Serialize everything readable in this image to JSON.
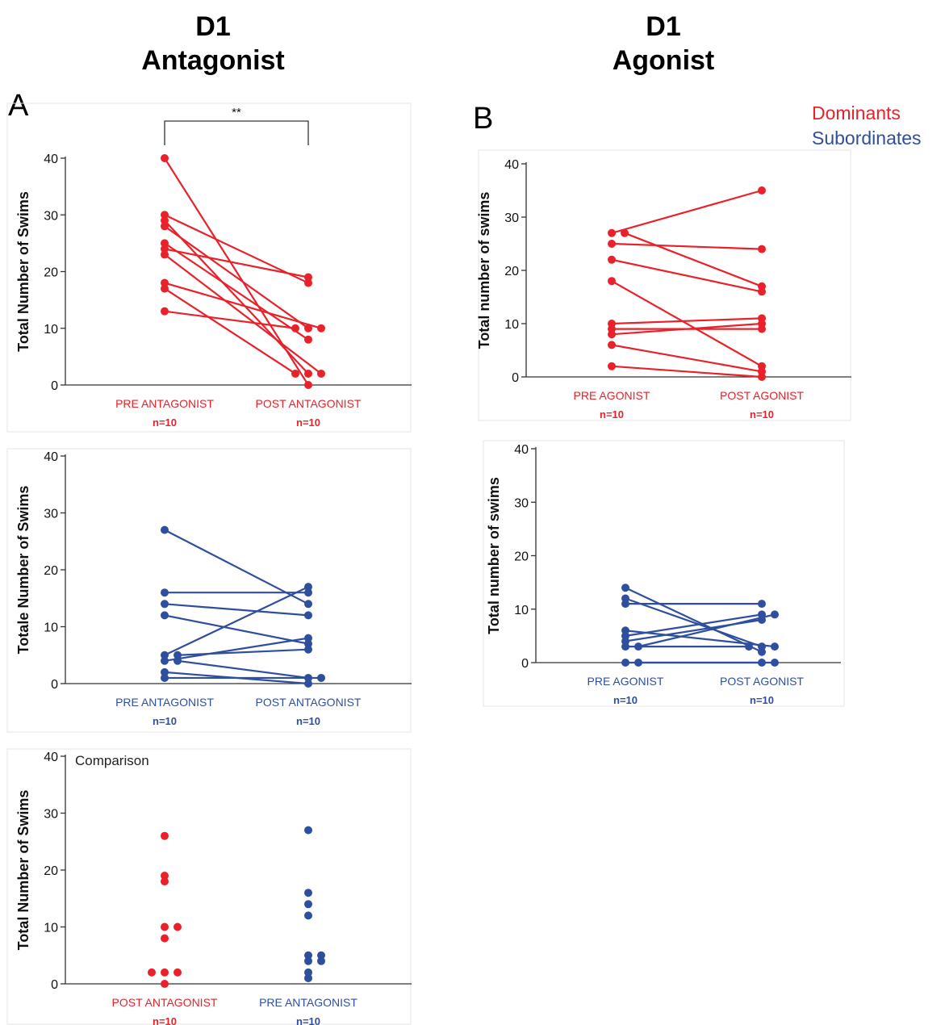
{
  "header": {
    "left_title_line1": "D1",
    "left_title_line2": "Antagonist",
    "right_title_line1": "D1",
    "right_title_line2": "Agonist"
  },
  "panel_labels": {
    "a": "A",
    "b": "B"
  },
  "legend": {
    "dominants": "Dominants",
    "subordinates": "Subordinates",
    "dominants_color": "#e8212a",
    "subordinates_color": "#2f4f9e"
  },
  "chart_data": [
    {
      "id": "antagonist-dominants",
      "type": "scatter",
      "paired": true,
      "color": "#e8212a",
      "ylabel": "Total Number of Swims",
      "ylim": [
        0,
        40
      ],
      "yticks": [
        "0",
        "10",
        "20",
        "30",
        "40"
      ],
      "categories": [
        "PRE ANTAGONIST",
        "POST ANTAGONIST"
      ],
      "n_labels": [
        "n=10",
        "n=10"
      ],
      "annotation": "**",
      "pairs": [
        [
          40,
          0
        ],
        [
          30,
          18
        ],
        [
          29,
          2
        ],
        [
          28,
          10
        ],
        [
          25,
          8
        ],
        [
          24,
          19
        ],
        [
          23,
          2
        ],
        [
          18,
          10
        ],
        [
          17,
          2
        ],
        [
          13,
          10
        ]
      ]
    },
    {
      "id": "antagonist-subordinates",
      "type": "scatter",
      "paired": true,
      "color": "#2f4f9e",
      "ylabel": "Totale Number of Swims",
      "ylim": [
        0,
        40
      ],
      "yticks": [
        "0",
        "10",
        "20",
        "30",
        "40"
      ],
      "categories": [
        "PRE ANTAGONIST",
        "POST ANTAGONIST"
      ],
      "n_labels": [
        "n=10",
        "n=10"
      ],
      "pairs": [
        [
          27,
          14
        ],
        [
          16,
          16
        ],
        [
          14,
          12
        ],
        [
          12,
          7
        ],
        [
          5,
          17
        ],
        [
          5,
          6
        ],
        [
          4,
          8
        ],
        [
          4,
          1
        ],
        [
          2,
          0
        ],
        [
          1,
          1
        ]
      ]
    },
    {
      "id": "antagonist-comparison",
      "type": "scatter",
      "paired": false,
      "title": "Comparison",
      "ylabel": "Total Number of Swims",
      "ylim": [
        0,
        40
      ],
      "yticks": [
        "0",
        "10",
        "20",
        "30",
        "40"
      ],
      "categories": [
        "POST ANTAGONIST",
        "PRE ANTAGONIST"
      ],
      "category_colors": [
        "#e8212a",
        "#2f4f9e"
      ],
      "n_labels": [
        "n=10",
        "n=10"
      ],
      "series": [
        {
          "color": "#e8212a",
          "values": [
            26,
            19,
            18,
            10,
            10,
            8,
            2,
            2,
            2,
            0
          ]
        },
        {
          "color": "#2f4f9e",
          "values": [
            27,
            16,
            14,
            12,
            5,
            5,
            4,
            4,
            2,
            1
          ]
        }
      ]
    },
    {
      "id": "agonist-dominants",
      "type": "scatter",
      "paired": true,
      "color": "#e8212a",
      "ylabel": "Total number of swims",
      "ylim": [
        0,
        40
      ],
      "yticks": [
        "0",
        "10",
        "20",
        "30",
        "40"
      ],
      "categories": [
        "PRE AGONIST",
        "POST AGONIST"
      ],
      "n_labels": [
        "n=10",
        "n=10"
      ],
      "pairs": [
        [
          27,
          35
        ],
        [
          27,
          17
        ],
        [
          25,
          24
        ],
        [
          22,
          16
        ],
        [
          18,
          2
        ],
        [
          10,
          11
        ],
        [
          9,
          9
        ],
        [
          8,
          10
        ],
        [
          6,
          1
        ],
        [
          2,
          0
        ]
      ]
    },
    {
      "id": "agonist-subordinates",
      "type": "scatter",
      "paired": true,
      "color": "#2f4f9e",
      "ylabel": "Total number of swims",
      "ylim": [
        0,
        40
      ],
      "yticks": [
        "0",
        "10",
        "20",
        "30",
        "40"
      ],
      "categories": [
        "PRE AGONIST",
        "POST AGONIST"
      ],
      "n_labels": [
        "n=10",
        "n=10"
      ],
      "pairs": [
        [
          14,
          2
        ],
        [
          12,
          3
        ],
        [
          11,
          11
        ],
        [
          6,
          3
        ],
        [
          5,
          9
        ],
        [
          4,
          8
        ],
        [
          3,
          3
        ],
        [
          3,
          9
        ],
        [
          0,
          0
        ],
        [
          0,
          0
        ]
      ]
    }
  ]
}
